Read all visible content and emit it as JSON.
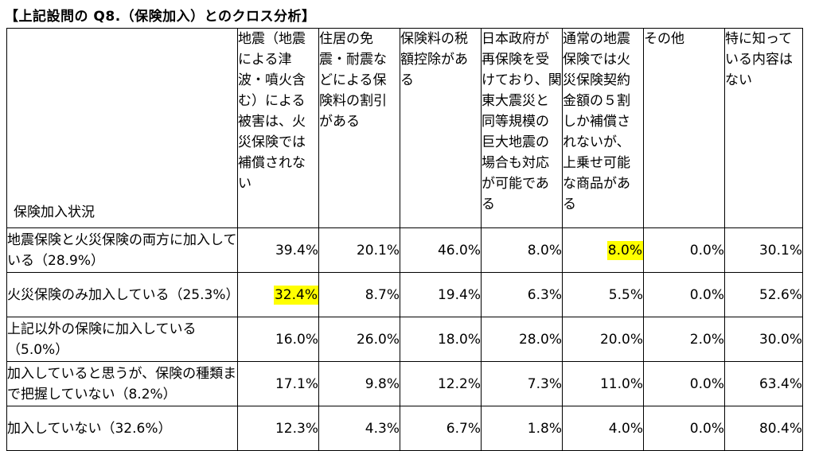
{
  "title": "【上記設問の Q8.（保険加入）とのクロス分析】",
  "corner_label": "保険加入状況",
  "columns": [
    "地震（地震による津波・噴火含む）による被害は、火災保険では補償されない",
    "住居の免震・耐震などによる保険料の割引がある",
    "保険料の税額控除がある",
    "日本政府が再保険を受けており、関東大震災と同等規模の巨大地震の場合も対応が可能である",
    "通常の地震保険では火災保険契約金額の５割しか補償されないが、上乗せ可能な商品がある",
    "その他",
    "特に知っている内容はない"
  ],
  "rows": [
    {
      "label": "地震保険と火災保険の両方に加入している（28.9%）",
      "values": [
        "39.4%",
        "20.1%",
        "46.0%",
        "8.0%",
        "8.0%",
        "0.0%",
        "30.1%"
      ]
    },
    {
      "label": "火災保険のみ加入している（25.3%）",
      "values": [
        "32.4%",
        "8.7%",
        "19.4%",
        "6.3%",
        "5.5%",
        "0.0%",
        "52.6%"
      ]
    },
    {
      "label": "上記以外の保険に加入している（5.0%）",
      "values": [
        "16.0%",
        "26.0%",
        "18.0%",
        "28.0%",
        "20.0%",
        "2.0%",
        "30.0%"
      ]
    },
    {
      "label": "加入していると思うが、保険の種類まで把握していない（8.2%）",
      "values": [
        "17.1%",
        "9.8%",
        "12.2%",
        "7.3%",
        "11.0%",
        "0.0%",
        "63.4%"
      ]
    },
    {
      "label": "加入していない（32.6%）",
      "values": [
        "12.3%",
        "4.3%",
        "6.7%",
        "1.8%",
        "4.0%",
        "0.0%",
        "80.4%"
      ]
    }
  ],
  "highlight_color": "#ffff00"
}
